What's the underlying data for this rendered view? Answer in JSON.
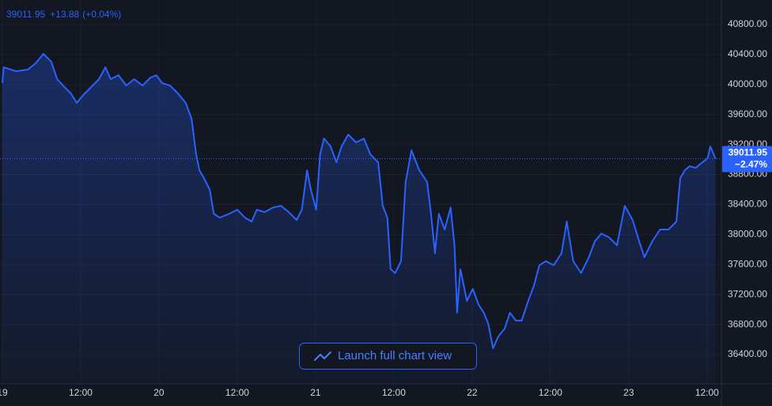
{
  "chart_data": {
    "type": "area",
    "color": "#2962ff",
    "header": {
      "change": "+13.88",
      "change_pct": "(+0.04%)"
    },
    "last_change": "−2.47%",
    "button": "Launch full chart view",
    "grid": true,
    "x": [
      0,
      0.2,
      2.1,
      3.9,
      5.1,
      6.3,
      7.5,
      8.4,
      9.3,
      10.5,
      11.4,
      12.4,
      13.6,
      14.8,
      15.8,
      16.6,
      17.8,
      19.0,
      20.2,
      21.5,
      22.7,
      23.6,
      24.5,
      25.7,
      26.9,
      28.1,
      29.0,
      29.7,
      30.2,
      30.9,
      31.8,
      32.4,
      33.3,
      34.8,
      36.0,
      37.2,
      38.2,
      39.0,
      40.2,
      41.5,
      42.7,
      43.9,
      45.1,
      45.9,
      46.7,
      47.3,
      48.1,
      48.7,
      49.3,
      50.3,
      51.2,
      52.0,
      53.0,
      54.2,
      55.4,
      56.4,
      57.6,
      58.3,
      59.0,
      59.5,
      60.2,
      61.1,
      61.8,
      62.7,
      63.9,
      65.1,
      65.7,
      66.3,
      66.9,
      67.8,
      68.7,
      69.3,
      69.7,
      70.2,
      71.2,
      72.1,
      73.0,
      73.8,
      74.5,
      75.2,
      76.0,
      77.0,
      77.8,
      78.7,
      79.6,
      80.6,
      81.5,
      82.3,
      83.3,
      84.5,
      85.7,
      86.5,
      87.5,
      88.7,
      89.9,
      90.8,
      91.8,
      93.0,
      94.2,
      95.4,
      96.6,
      97.6,
      98.4,
      99.6,
      100.8,
      102.1,
      103.3,
      103.9,
      104.6,
      105.3,
      106.3,
      107.3,
      108.1,
      108.5,
      109.3
    ],
    "values": [
      40019,
      40230,
      40177,
      40199,
      40283,
      40410,
      40304,
      40072,
      39987,
      39882,
      39755,
      39861,
      39966,
      40072,
      40230,
      40072,
      40125,
      39987,
      40072,
      39987,
      40093,
      40125,
      40019,
      39987,
      39882,
      39755,
      39544,
      39069,
      38858,
      38753,
      38595,
      38278,
      38225,
      38278,
      38331,
      38225,
      38173,
      38331,
      38299,
      38362,
      38383,
      38299,
      38194,
      38331,
      38858,
      38595,
      38331,
      39069,
      39281,
      39175,
      38964,
      39175,
      39333,
      39228,
      39281,
      39069,
      38964,
      38383,
      38225,
      37539,
      37487,
      37645,
      38700,
      39122,
      38858,
      38700,
      38278,
      37750,
      38278,
      38067,
      38362,
      37856,
      36959,
      37539,
      37117,
      37276,
      37065,
      36959,
      36801,
      36484,
      36642,
      36748,
      36959,
      36853,
      36853,
      37117,
      37328,
      37592,
      37645,
      37592,
      37750,
      38173,
      37645,
      37487,
      37698,
      37909,
      38014,
      37962,
      37856,
      38383,
      38194,
      37909,
      37698,
      37909,
      38067,
      38067,
      38173,
      38753,
      38858,
      38911,
      38890,
      38964,
      39017,
      39175,
      39011.95
    ],
    "xlim": [
      -0.36,
      110.2
    ],
    "xticks": [
      {
        "value": 0,
        "label": "19"
      },
      {
        "value": 12,
        "label": "12:00"
      },
      {
        "value": 24,
        "label": "20"
      },
      {
        "value": 36,
        "label": "12:00"
      },
      {
        "value": 48,
        "label": "21"
      },
      {
        "value": 60,
        "label": "12:00"
      },
      {
        "value": 72,
        "label": "22"
      },
      {
        "value": 84,
        "label": "12:00"
      },
      {
        "value": 96,
        "label": "23"
      },
      {
        "value": 108,
        "label": "12:00"
      }
    ],
    "ylim": [
      36010,
      41127
    ],
    "yticks": [
      {
        "value": 36400,
        "label": "36400.00"
      },
      {
        "value": 36800,
        "label": "36800.00"
      },
      {
        "value": 37200,
        "label": "37200.00"
      },
      {
        "value": 37600,
        "label": "37600.00"
      },
      {
        "value": 38000,
        "label": "38000.00"
      },
      {
        "value": 38400,
        "label": "38400.00"
      },
      {
        "value": 38800,
        "label": "38800.00"
      },
      {
        "value": 39200,
        "label": "39200.00"
      },
      {
        "value": 39600,
        "label": "39600.00"
      },
      {
        "value": 40000,
        "label": "40000.00"
      },
      {
        "value": 40400,
        "label": "40400.00"
      },
      {
        "value": 40800,
        "label": "40800.00"
      }
    ]
  }
}
